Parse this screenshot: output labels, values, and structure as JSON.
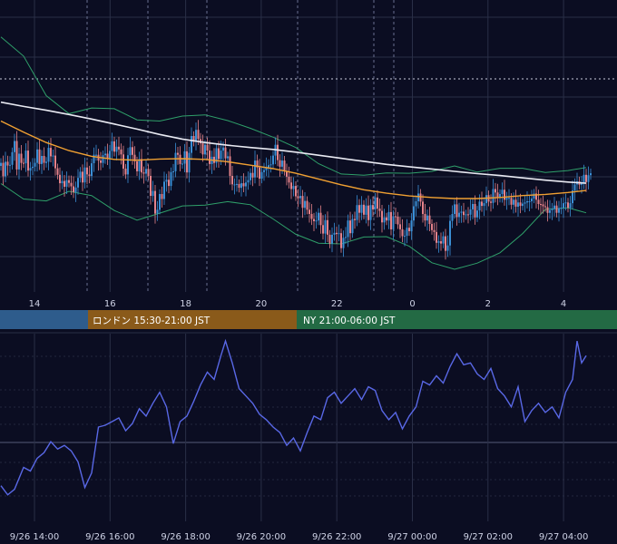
{
  "colors": {
    "background": "#0b0d22",
    "grid": "#2a2f47",
    "candle_up": "#3a8fd6",
    "candle_down": "#e4828a",
    "ma_long": "#e9eaf2",
    "ma_mid": "#f0a032",
    "bollinger": "#2fa06a",
    "oscillator": "#5968e6",
    "session_asia": "#2e5c8c",
    "session_london": "#8a5a1a",
    "session_ny": "#236a44"
  },
  "sessions": [
    {
      "id": "asia",
      "label": ""
    },
    {
      "id": "london",
      "label": "ロンドン 15:30-21:00 JST"
    },
    {
      "id": "ny",
      "label": "NY 21:00-06:00 JST"
    }
  ],
  "chart_data": [
    {
      "type": "candlestick",
      "x_ticks": [
        "14",
        "16",
        "18",
        "20",
        "22",
        "0",
        "2",
        "4"
      ],
      "close": [
        51.6,
        48.1,
        51.9,
        50.9,
        51.1,
        54.4,
        57.3,
        49.9,
        54.0,
        51.6,
        51.5,
        54.8,
        49.6,
        50.3,
        50.6,
        51.6,
        55.1,
        51.3,
        53.4,
        51.6,
        51.9,
        55.5,
        53.3,
        53.5,
        50.2,
        48.5,
        46.3,
        46.9,
        45.4,
        47.1,
        46.4,
        45.5,
        44.0,
        45.2,
        47.7,
        49.3,
        46.5,
        50.4,
        48.6,
        48.2,
        51.5,
        53.7,
        53.7,
        52.2,
        51.6,
        53.6,
        54.0,
        52.6,
        54.7,
        57.2,
        54.5,
        55.8,
        55.1,
        53.8,
        50.1,
        48.6,
        53.6,
        55.7,
        53.7,
        52.0,
        49.4,
        52.6,
        49.1,
        48.8,
        50.0,
        48.2,
        43.0,
        44.3,
        38.4,
        39.4,
        43.5,
        42.2,
        46.7,
        47.2,
        45.6,
        49.2,
        49.4,
        54.2,
        53.7,
        51.3,
        51.4,
        54.6,
        49.1,
        54.2,
        58.6,
        57.1,
        60.2,
        57.8,
        56.7,
        53.8,
        56.3,
        54.8,
        51.3,
        53.2,
        51.6,
        55.4,
        52.6,
        54.8,
        55.6,
        52.8,
        53.3,
        48.2,
        46.0,
        46.0,
        46.1,
        45.1,
        46.3,
        45.5,
        46.5,
        47.1,
        49.0,
        47.8,
        52.2,
        50.4,
        47.5,
        49.2,
        49.7,
        50.4,
        51.0,
        51.2,
        53.5,
        56.3,
        52.3,
        50.6,
        52.2,
        49.5,
        48.0,
        46.5,
        44.8,
        45.6,
        42.9,
        42.4,
        43.0,
        39.9,
        41.7,
        39.4,
        38.3,
        37.0,
        36.4,
        36.6,
        38.6,
        35.4,
        33.2,
        36.7,
        32.9,
        30.6,
        32.9,
        33.4,
        33.1,
        33.3,
        29.4,
        32.1,
        32.3,
        36.6,
        33.3,
        37.0,
        36.7,
        40.6,
        38.6,
        40.7,
        38.1,
        40.5,
        36.7,
        40.6,
        39.5,
        42.6,
        39.7,
        39.1,
        36.1,
        37.4,
        36.6,
        38.8,
        34.3,
        37.7,
        37.6,
        35.6,
        34.3,
        32.5,
        32.6,
        34.7,
        33.8,
        36.6,
        40.3,
        41.6,
        43.6,
        41.5,
        38.3,
        36.6,
        37.9,
        35.7,
        34.1,
        33.6,
        30.8,
        31.2,
        30.6,
        32.5,
        28.7,
        30.1,
        36.5,
        38.3,
        40.8,
        37.5,
        38.6,
        38.9,
        38.0,
        38.2,
        38.1,
        39.5,
        40.9,
        37.4,
        39.2,
        41.5,
        40.4,
        41.1,
        43.2,
        41.5,
        41.2,
        44.8,
        43.9,
        42.5,
        43.5,
        44.6,
        42.0,
        42.5,
        42.5,
        40.7,
        42.0,
        40.2,
        41.3,
        40.4,
        41.0,
        41.3,
        41.6,
        41.6,
        42.3,
        43.6,
        42.0,
        40.9,
        40.8,
        40.3,
        40.1,
        38.6,
        39.3,
        39.6,
        40.5,
        38.6,
        39.8,
        39.9,
        41.1,
        41.3,
        39.9,
        41.1,
        44.4,
        46.0,
        46.8,
        45.9,
        46.3,
        48.5,
        46.6,
        48.4,
        48.9
      ],
      "moving_averages": [
        {
          "id": "ma_long",
          "values": [
            [
              0,
              67.4
            ],
            [
              10,
              66.3
            ],
            [
              20,
              65.3
            ],
            [
              30,
              64.2
            ],
            [
              40,
              63.0
            ],
            [
              50,
              61.7
            ],
            [
              60,
              60.4
            ],
            [
              70,
              59.0
            ],
            [
              80,
              57.8
            ],
            [
              90,
              56.9
            ],
            [
              100,
              56.2
            ],
            [
              110,
              55.6
            ],
            [
              120,
              55.1
            ],
            [
              130,
              54.4
            ],
            [
              140,
              53.6
            ],
            [
              150,
              52.8
            ],
            [
              160,
              52.0
            ],
            [
              170,
              51.2
            ],
            [
              180,
              50.6
            ],
            [
              190,
              50.0
            ],
            [
              200,
              49.4
            ],
            [
              210,
              48.8
            ],
            [
              220,
              48.3
            ],
            [
              230,
              47.7
            ],
            [
              240,
              47.1
            ],
            [
              250,
              46.6
            ],
            [
              258,
              46.3
            ]
          ]
        },
        {
          "id": "ma_mid",
          "values": [
            [
              0,
              62.5
            ],
            [
              10,
              59.6
            ],
            [
              20,
              56.9
            ],
            [
              30,
              54.8
            ],
            [
              40,
              53.3
            ],
            [
              50,
              52.5
            ],
            [
              60,
              52.3
            ],
            [
              70,
              52.6
            ],
            [
              80,
              52.7
            ],
            [
              90,
              52.5
            ],
            [
              100,
              51.9
            ],
            [
              110,
              51.0
            ],
            [
              120,
              50.1
            ],
            [
              130,
              48.9
            ],
            [
              140,
              47.4
            ],
            [
              150,
              45.9
            ],
            [
              160,
              44.6
            ],
            [
              170,
              43.7
            ],
            [
              180,
              43.0
            ],
            [
              190,
              42.6
            ],
            [
              200,
              42.3
            ],
            [
              210,
              42.3
            ],
            [
              220,
              42.6
            ],
            [
              230,
              43.1
            ],
            [
              240,
              43.4
            ],
            [
              250,
              43.9
            ],
            [
              258,
              44.4
            ]
          ]
        }
      ],
      "bollinger_upper": [
        [
          0,
          84.4
        ],
        [
          10,
          79.4
        ],
        [
          20,
          69.1
        ],
        [
          30,
          64.4
        ],
        [
          40,
          65.9
        ],
        [
          50,
          65.7
        ],
        [
          60,
          62.8
        ],
        [
          70,
          62.5
        ],
        [
          80,
          63.8
        ],
        [
          90,
          64.1
        ],
        [
          100,
          62.6
        ],
        [
          110,
          60.6
        ],
        [
          120,
          58.3
        ],
        [
          130,
          55.6
        ],
        [
          140,
          51.4
        ],
        [
          150,
          48.7
        ],
        [
          160,
          48.4
        ],
        [
          170,
          49.0
        ],
        [
          180,
          48.9
        ],
        [
          190,
          49.4
        ],
        [
          200,
          50.8
        ],
        [
          210,
          49.2
        ],
        [
          220,
          50.2
        ],
        [
          230,
          50.2
        ],
        [
          240,
          49.1
        ],
        [
          250,
          49.6
        ],
        [
          258,
          50.4
        ]
      ],
      "bollinger_lower": [
        [
          0,
          46.2
        ],
        [
          10,
          42.2
        ],
        [
          20,
          41.7
        ],
        [
          30,
          44.2
        ],
        [
          40,
          43.1
        ],
        [
          50,
          39.2
        ],
        [
          60,
          36.7
        ],
        [
          70,
          38.5
        ],
        [
          80,
          40.4
        ],
        [
          90,
          40.6
        ],
        [
          100,
          41.5
        ],
        [
          110,
          40.7
        ],
        [
          120,
          37.0
        ],
        [
          130,
          33.0
        ],
        [
          140,
          30.7
        ],
        [
          150,
          30.5
        ],
        [
          160,
          32.3
        ],
        [
          170,
          32.4
        ],
        [
          180,
          29.9
        ],
        [
          190,
          25.6
        ],
        [
          200,
          23.9
        ],
        [
          210,
          25.5
        ],
        [
          220,
          28.2
        ],
        [
          230,
          33.2
        ],
        [
          240,
          39.5
        ],
        [
          250,
          39.9
        ],
        [
          258,
          38.6
        ]
      ],
      "grid": true
    },
    {
      "type": "line",
      "x_ticks": [
        "9/26 14:00",
        "9/26 16:00",
        "9/26 18:00",
        "9/26 20:00",
        "9/26 22:00",
        "9/27 00:00",
        "9/27 02:00",
        "9/27 04:00"
      ],
      "values": [
        [
          0,
          17
        ],
        [
          3,
          12
        ],
        [
          6,
          15
        ],
        [
          10,
          27
        ],
        [
          13,
          25
        ],
        [
          16,
          32
        ],
        [
          19,
          35
        ],
        [
          22,
          41
        ],
        [
          25,
          37
        ],
        [
          28,
          39
        ],
        [
          31,
          36
        ],
        [
          34,
          30
        ],
        [
          37,
          16
        ],
        [
          40,
          24
        ],
        [
          43,
          49
        ],
        [
          46,
          50
        ],
        [
          49,
          52
        ],
        [
          52,
          54
        ],
        [
          55,
          47
        ],
        [
          58,
          51
        ],
        [
          61,
          59
        ],
        [
          64,
          55
        ],
        [
          67,
          62
        ],
        [
          70,
          68
        ],
        [
          73,
          60
        ],
        [
          76,
          40
        ],
        [
          79,
          52
        ],
        [
          82,
          55
        ],
        [
          85,
          63
        ],
        [
          88,
          72
        ],
        [
          91,
          79
        ],
        [
          94,
          75
        ],
        [
          97,
          88
        ],
        [
          99,
          96
        ],
        [
          102,
          84
        ],
        [
          105,
          70
        ],
        [
          108,
          66
        ],
        [
          111,
          62
        ],
        [
          114,
          56
        ],
        [
          117,
          53
        ],
        [
          120,
          49
        ],
        [
          123,
          46
        ],
        [
          126,
          39
        ],
        [
          129,
          43
        ],
        [
          132,
          36
        ],
        [
          135,
          46
        ],
        [
          138,
          55
        ],
        [
          141,
          53
        ],
        [
          144,
          65
        ],
        [
          147,
          68
        ],
        [
          150,
          62
        ],
        [
          153,
          66
        ],
        [
          156,
          70
        ],
        [
          159,
          64
        ],
        [
          162,
          71
        ],
        [
          165,
          69
        ],
        [
          168,
          58
        ],
        [
          171,
          53
        ],
        [
          174,
          57
        ],
        [
          177,
          48
        ],
        [
          180,
          55
        ],
        [
          183,
          60
        ],
        [
          186,
          74
        ],
        [
          189,
          72
        ],
        [
          192,
          77
        ],
        [
          195,
          73
        ],
        [
          198,
          82
        ],
        [
          201,
          89
        ],
        [
          204,
          83
        ],
        [
          207,
          84
        ],
        [
          210,
          78
        ],
        [
          213,
          75
        ],
        [
          216,
          81
        ],
        [
          219,
          70
        ],
        [
          222,
          66
        ],
        [
          225,
          60
        ],
        [
          228,
          71
        ],
        [
          231,
          52
        ],
        [
          234,
          58
        ],
        [
          237,
          62
        ],
        [
          240,
          57
        ],
        [
          243,
          60
        ],
        [
          246,
          54
        ],
        [
          249,
          68
        ],
        [
          252,
          75
        ],
        [
          254,
          96
        ],
        [
          256,
          84
        ],
        [
          258,
          88
        ]
      ],
      "grid": true
    }
  ]
}
